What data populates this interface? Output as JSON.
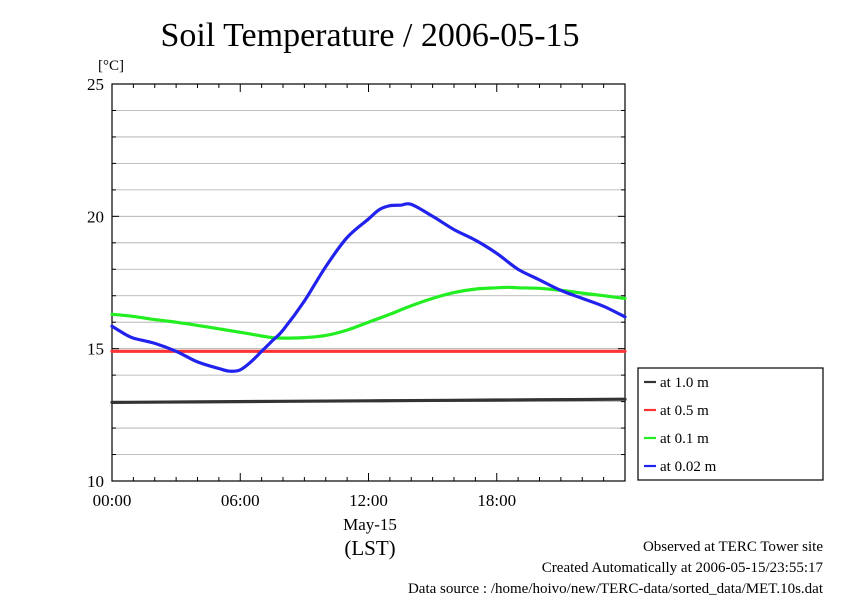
{
  "chart_data": {
    "type": "line",
    "title": "Soil Temperature / 2006-05-15",
    "ylabel": "[°C]",
    "xlabel": "(LST)",
    "date_label": "May-15",
    "ylim": [
      10,
      25
    ],
    "xlim_hours": [
      0,
      24
    ],
    "y_ticks": [
      "10",
      "15",
      "20",
      "25"
    ],
    "y_tick_values": [
      10,
      15,
      20,
      25
    ],
    "x_ticks": [
      "00:00",
      "06:00",
      "12:00",
      "18:00"
    ],
    "x_tick_hours": [
      0,
      6,
      12,
      18
    ],
    "grid": true,
    "legend_position": "right",
    "series": [
      {
        "name": "at 1.0 m",
        "color": "#333333",
        "x": [
          0,
          4,
          8,
          12,
          16,
          20,
          24
        ],
        "y": [
          12.97,
          12.99,
          13.01,
          13.03,
          13.05,
          13.07,
          13.09
        ]
      },
      {
        "name": "at 0.5 m",
        "color": "#ff3333",
        "x": [
          0,
          6,
          12,
          18,
          24
        ],
        "y": [
          14.9,
          14.9,
          14.9,
          14.9,
          14.9
        ]
      },
      {
        "name": "at 0.1 m",
        "color": "#22ee22",
        "x": [
          0,
          1,
          2,
          3,
          4,
          5,
          6,
          7,
          7.5,
          8,
          9,
          10,
          11,
          12,
          13,
          14,
          15,
          16,
          17,
          18,
          18.5,
          19,
          20,
          21,
          22,
          23,
          24
        ],
        "y": [
          16.3,
          16.22,
          16.1,
          16.0,
          15.88,
          15.75,
          15.62,
          15.48,
          15.42,
          15.4,
          15.42,
          15.5,
          15.7,
          16.0,
          16.3,
          16.62,
          16.9,
          17.12,
          17.25,
          17.3,
          17.32,
          17.3,
          17.28,
          17.2,
          17.1,
          17.0,
          16.9
        ]
      },
      {
        "name": "at 0.02 m",
        "color": "#2222ee",
        "x": [
          0,
          0.5,
          1,
          2,
          3,
          4,
          5,
          5.5,
          6,
          6.5,
          7,
          7.5,
          8,
          9,
          10,
          11,
          12,
          12.5,
          13,
          13.5,
          14,
          15,
          16,
          17,
          18,
          19,
          20,
          21,
          22,
          23,
          24
        ],
        "y": [
          15.85,
          15.6,
          15.4,
          15.2,
          14.9,
          14.5,
          14.25,
          14.15,
          14.2,
          14.5,
          14.9,
          15.3,
          15.7,
          16.8,
          18.1,
          19.2,
          19.9,
          20.25,
          20.4,
          20.42,
          20.45,
          20.0,
          19.5,
          19.1,
          18.6,
          18.0,
          17.6,
          17.2,
          16.9,
          16.6,
          16.2
        ]
      }
    ]
  },
  "footer": {
    "line1": "Observed at TERC Tower site",
    "line2": "Created Automatically at 2006-05-15/23:55:17",
    "line3": "Data source : /home/hoivo/new/TERC-data/sorted_data/MET.10s.dat"
  }
}
